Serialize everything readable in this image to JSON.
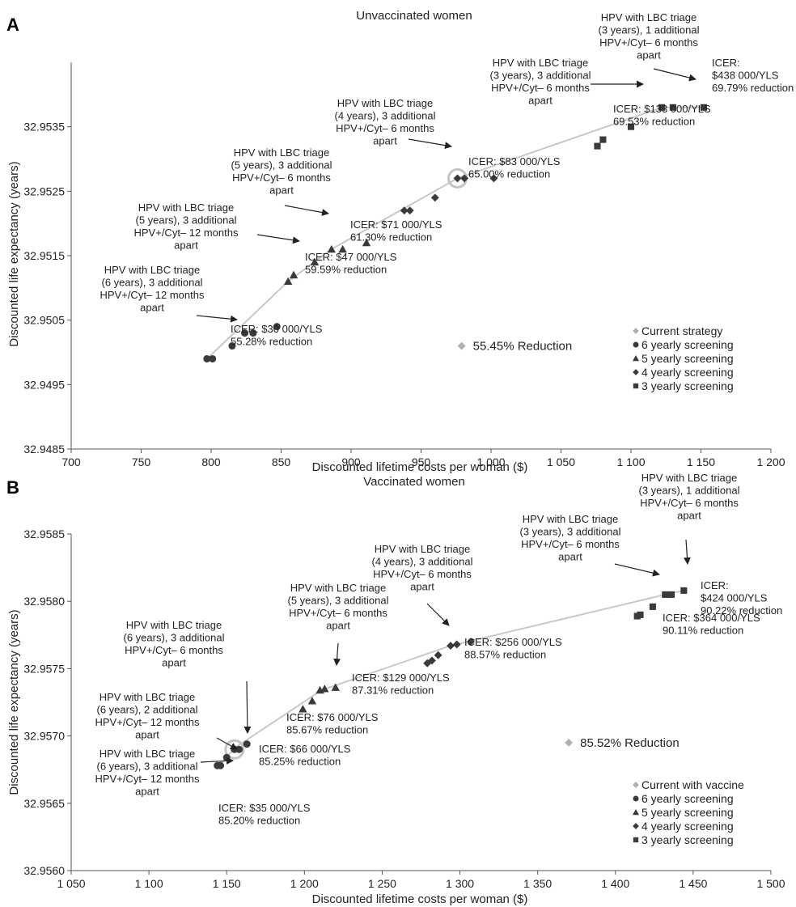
{
  "chart_data": [
    {
      "type": "scatter",
      "panel": "A",
      "title": "Unvaccinated women",
      "xlabel": "Discounted lifetime costs per woman ($)",
      "ylabel": "Discounted life expectancy (years)",
      "xlim": [
        700,
        1200
      ],
      "ylim": [
        32.9485,
        32.9545
      ],
      "xticks": [
        700,
        750,
        800,
        850,
        900,
        950,
        1000,
        1050,
        1100,
        1150,
        1200
      ],
      "xtick_labels": [
        "700",
        "750",
        "800",
        "850",
        "900",
        "950",
        "1 000",
        "1 050",
        "1 100",
        "1 150",
        "1 200"
      ],
      "yticks": [
        32.9485,
        32.9495,
        32.9505,
        32.9515,
        32.9525,
        32.9535
      ],
      "ytick_labels": [
        "32.9485",
        "32.9495",
        "32.9505",
        "32.9515",
        "32.9525",
        "32.9535"
      ],
      "grid": false,
      "legend_position": "bottom-right",
      "frontier": [
        [
          797,
          32.9499
        ],
        [
          855,
          32.9511
        ],
        [
          886,
          32.9516
        ],
        [
          976,
          32.9527
        ],
        [
          1122,
          32.9538
        ],
        [
          1152,
          32.9538
        ]
      ],
      "highlight": [
        976,
        32.9527
      ],
      "series": [
        {
          "name": "Current strategy",
          "marker": "diamond",
          "color": "#b0b0b0",
          "points": [
            [
              979,
              32.9501
            ]
          ]
        },
        {
          "name": "6 yearly screening",
          "marker": "circle",
          "color": "#3a3a3a",
          "points": [
            [
              797,
              32.9499
            ],
            [
              801,
              32.9499
            ],
            [
              815,
              32.9501
            ],
            [
              824,
              32.9503
            ],
            [
              830,
              32.9503
            ],
            [
              847,
              32.9504
            ]
          ]
        },
        {
          "name": "5 yearly screening",
          "marker": "triangle",
          "color": "#3a3a3a",
          "points": [
            [
              855,
              32.9511
            ],
            [
              859,
              32.9512
            ],
            [
              874,
              32.9514
            ],
            [
              886,
              32.9516
            ],
            [
              894,
              32.9516
            ],
            [
              911,
              32.9517
            ]
          ]
        },
        {
          "name": "4 yearly screening",
          "marker": "diamond",
          "color": "#3a3a3a",
          "points": [
            [
              938,
              32.9522
            ],
            [
              942,
              32.9522
            ],
            [
              960,
              32.9524
            ],
            [
              976,
              32.9527
            ],
            [
              981,
              32.9527
            ],
            [
              1002,
              32.9527
            ]
          ]
        },
        {
          "name": "3 yearly screening",
          "marker": "square",
          "color": "#3a3a3a",
          "points": [
            [
              1076,
              32.9532
            ],
            [
              1080,
              32.9533
            ],
            [
              1100,
              32.9535
            ],
            [
              1122,
              32.9538
            ],
            [
              1130,
              32.9538
            ],
            [
              1152,
              32.9538
            ]
          ]
        }
      ],
      "reference_label": "55.45% Reduction",
      "annotations": [
        {
          "lines": [
            "HPV with LBC triage",
            "(6 years), 3 additional",
            "HPV+/Cyt– 12 months",
            "apart"
          ]
        },
        {
          "lines": [
            "ICER: $30 000/YLS",
            "55.28% reduction"
          ]
        },
        {
          "lines": [
            "HPV with LBC triage",
            "(5 years), 3 additional",
            "HPV+/Cyt– 12 months",
            "apart"
          ]
        },
        {
          "lines": [
            "ICER: $47 000/YLS",
            "59.59% reduction"
          ]
        },
        {
          "lines": [
            "HPV with LBC triage",
            "(5 years), 3 additional",
            "HPV+/Cyt– 6 months",
            "apart"
          ]
        },
        {
          "lines": [
            "ICER: $71 000/YLS",
            "61.30% reduction"
          ]
        },
        {
          "lines": [
            "HPV with LBC triage",
            "(4 years), 3 additional",
            "HPV+/Cyt– 6 months",
            "apart"
          ]
        },
        {
          "lines": [
            "ICER: $83 000/YLS",
            "65.00% reduction"
          ]
        },
        {
          "lines": [
            "HPV with LBC triage",
            "(3 years), 3 additional",
            "HPV+/Cyt– 6 months",
            "apart"
          ]
        },
        {
          "lines": [
            "ICER: $133 000/YLS",
            "69.53% reduction"
          ]
        },
        {
          "lines": [
            "HPV with LBC triage",
            "(3 years), 1 additional",
            "HPV+/Cyt– 6 months",
            "apart"
          ]
        },
        {
          "lines": [
            "ICER:",
            "$438 000/YLS",
            "69.79% reduction"
          ]
        }
      ]
    },
    {
      "type": "scatter",
      "panel": "B",
      "title": "Vaccinated women",
      "xlabel": "Discounted lifetime costs per woman ($)",
      "ylabel": "Discounted life expectancy (years)",
      "xlim": [
        1050,
        1500
      ],
      "ylim": [
        32.956,
        32.9585
      ],
      "xticks": [
        1050,
        1100,
        1150,
        1200,
        1250,
        1300,
        1350,
        1400,
        1450,
        1500
      ],
      "xtick_labels": [
        "1 050",
        "1 100",
        "1 150",
        "1 200",
        "1 250",
        "1 300",
        "1 350",
        "1 400",
        "1 450",
        "1 500"
      ],
      "yticks": [
        32.956,
        32.9565,
        32.957,
        32.9575,
        32.958,
        32.9585
      ],
      "ytick_labels": [
        "32.9560",
        "32.9565",
        "32.9570",
        "32.9575",
        "32.9580",
        "32.9585"
      ],
      "grid": false,
      "legend_position": "bottom-right",
      "frontier": [
        [
          1145,
          32.95678
        ],
        [
          1150,
          32.95684
        ],
        [
          1155,
          32.95691
        ],
        [
          1211,
          32.95734
        ],
        [
          1294,
          32.95767
        ],
        [
          1432,
          32.95805
        ],
        [
          1444,
          32.95808
        ]
      ],
      "highlight": [
        1155,
        32.9569
      ],
      "series": [
        {
          "name": "Current with vaccine",
          "marker": "diamond",
          "color": "#b0b0b0",
          "points": [
            [
              1370,
              32.95695
            ]
          ]
        },
        {
          "name": "6 yearly screening",
          "marker": "circle",
          "color": "#3a3a3a",
          "points": [
            [
              1144,
              32.95678
            ],
            [
              1146,
              32.95678
            ],
            [
              1150,
              32.95684
            ],
            [
              1155,
              32.9569
            ],
            [
              1158,
              32.9569
            ],
            [
              1163,
              32.95694
            ]
          ]
        },
        {
          "name": "5 yearly screening",
          "marker": "triangle",
          "color": "#3a3a3a",
          "points": [
            [
              1199,
              32.9572
            ],
            [
              1205,
              32.95726
            ],
            [
              1210,
              32.95734
            ],
            [
              1213,
              32.95735
            ],
            [
              1220,
              32.95736
            ]
          ]
        },
        {
          "name": "4 yearly screening",
          "marker": "diamond",
          "color": "#3a3a3a",
          "points": [
            [
              1279,
              32.95754
            ],
            [
              1282,
              32.95756
            ],
            [
              1286,
              32.9576
            ],
            [
              1294,
              32.95767
            ],
            [
              1298,
              32.95768
            ],
            [
              1307,
              32.9577
            ]
          ]
        },
        {
          "name": "3 yearly screening",
          "marker": "square",
          "color": "#3a3a3a",
          "points": [
            [
              1414,
              32.95789
            ],
            [
              1416,
              32.9579
            ],
            [
              1424,
              32.95796
            ],
            [
              1432,
              32.95805
            ],
            [
              1436,
              32.95805
            ],
            [
              1444,
              32.95808
            ]
          ]
        }
      ],
      "reference_label": "85.52% Reduction",
      "annotations": [
        {
          "lines": [
            "HPV with LBC triage",
            "(6 years), 2 additional",
            "HPV+/Cyt– 12 months",
            "apart"
          ]
        },
        {
          "lines": [
            "HPV with LBC triage",
            "(6 years), 3 additional",
            "HPV+/Cyt– 12 months",
            "apart"
          ]
        },
        {
          "lines": [
            "ICER: $35 000/YLS",
            "85.20% reduction"
          ]
        },
        {
          "lines": [
            "HPV with LBC triage",
            "(6 years), 3 additional",
            "HPV+/Cyt– 6 months",
            "apart"
          ]
        },
        {
          "lines": [
            "ICER: $66 000/YLS",
            "85.25% reduction"
          ]
        },
        {
          "lines": [
            "ICER: $76 000/YLS",
            "85.67% reduction"
          ]
        },
        {
          "lines": [
            "HPV with LBC triage",
            "(5 years), 3 additional",
            "HPV+/Cyt– 6 months",
            "apart"
          ]
        },
        {
          "lines": [
            "ICER: $129 000/YLS",
            "87.31% reduction"
          ]
        },
        {
          "lines": [
            "HPV with LBC triage",
            "(4 years), 3 additional",
            "HPV+/Cyt– 6 months",
            "apart"
          ]
        },
        {
          "lines": [
            "ICER: $256 000/YLS",
            "88.57% reduction"
          ]
        },
        {
          "lines": [
            "HPV with LBC triage",
            "(3 years), 3 additional",
            "HPV+/Cyt– 6 months",
            "apart"
          ]
        },
        {
          "lines": [
            "ICER: $364 000/YLS",
            "90.11% reduction"
          ]
        },
        {
          "lines": [
            "HPV with LBC triage",
            "(3 years), 1 additional",
            "HPV+/Cyt– 6 months",
            "apart"
          ]
        },
        {
          "lines": [
            "ICER:",
            "$424 000/YLS",
            "90.22% reduction"
          ]
        }
      ]
    }
  ]
}
